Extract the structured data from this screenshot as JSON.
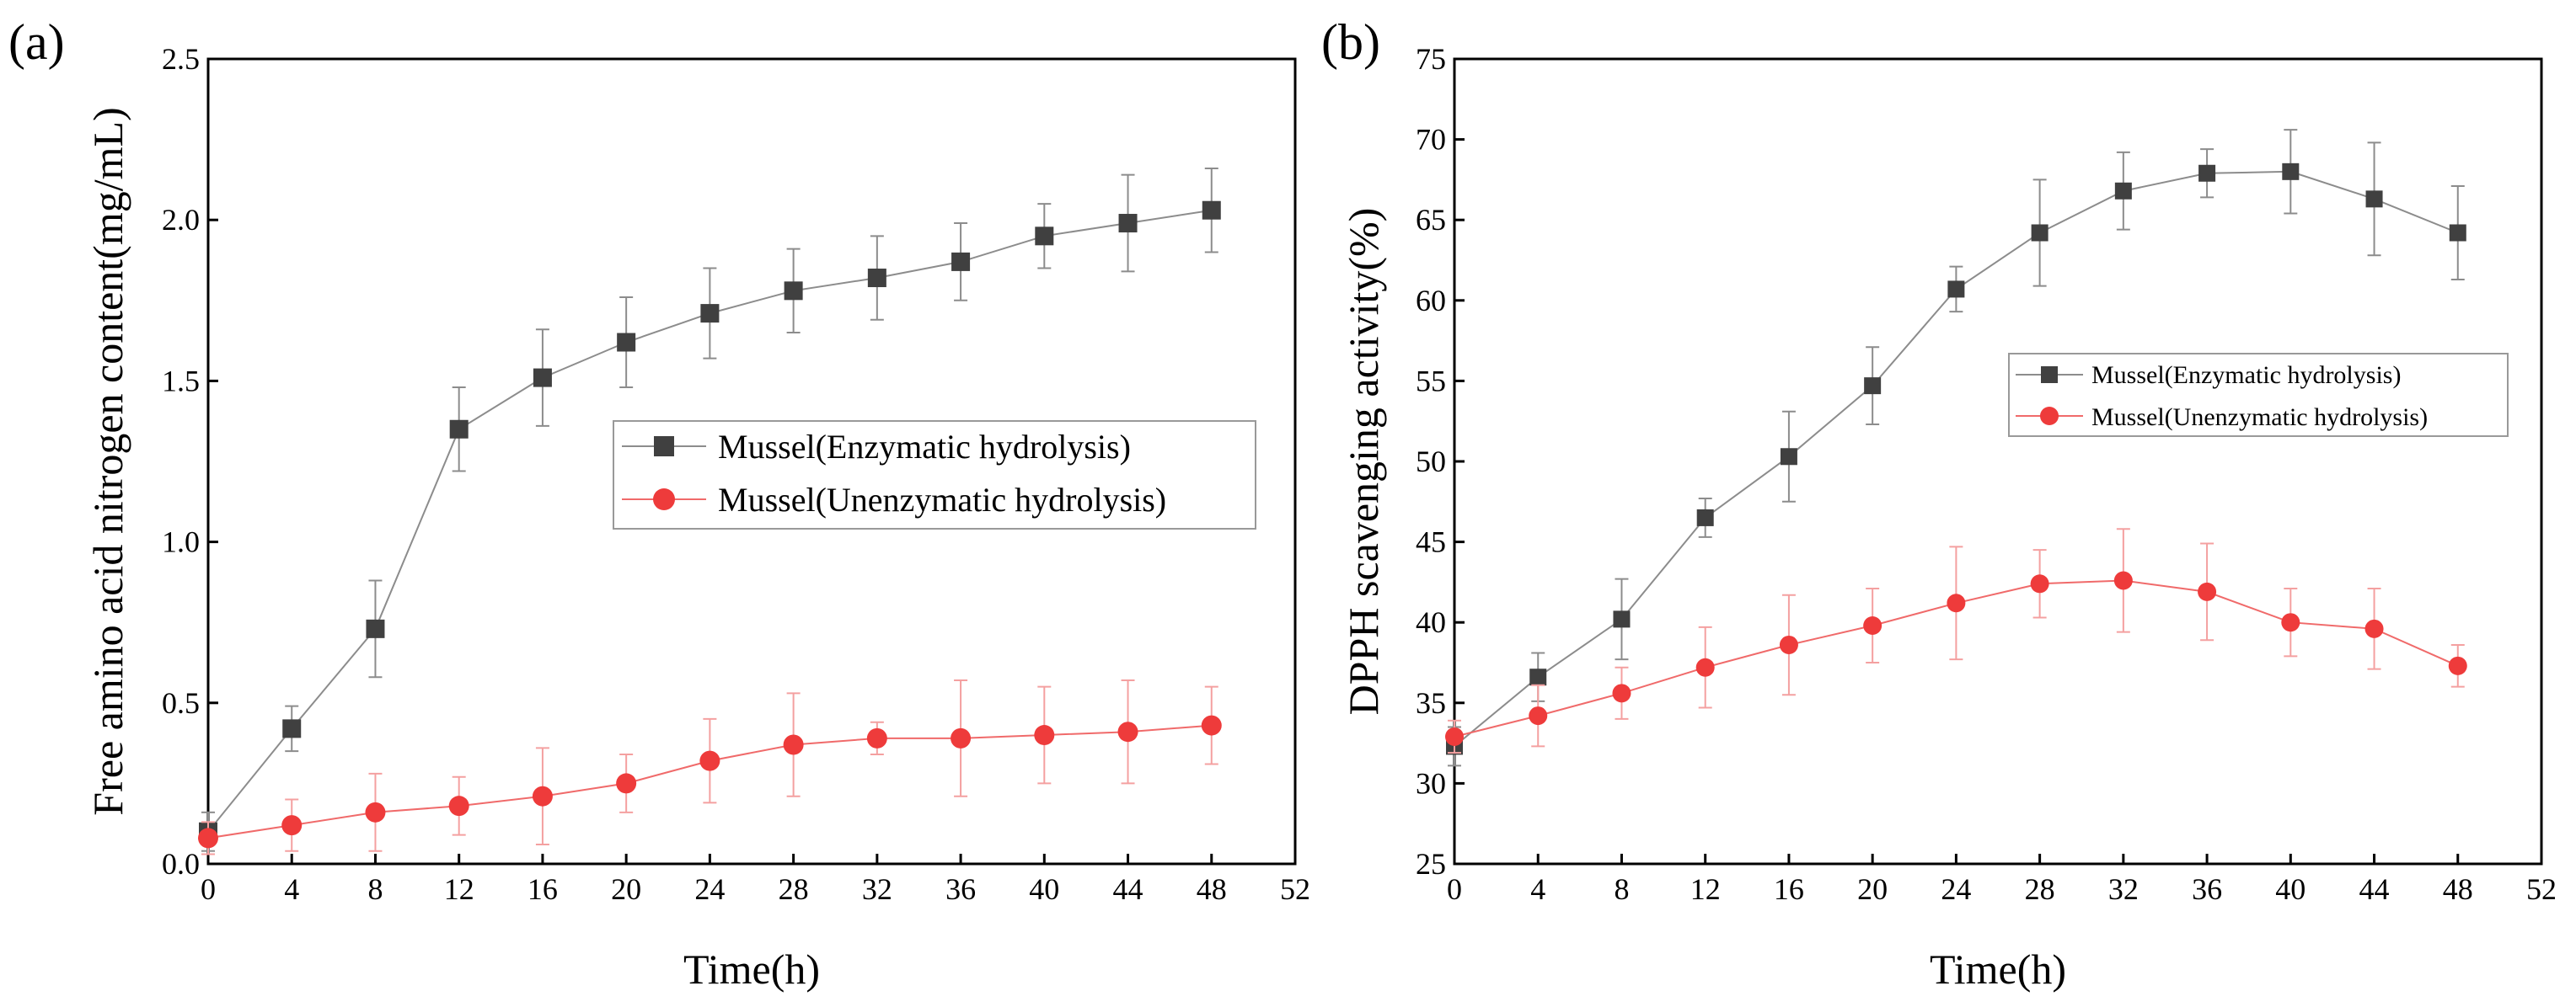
{
  "chart_data": [
    {
      "type": "line",
      "panel_label": "(a)",
      "title": "",
      "xlabel": "Time(h)",
      "ylabel": "Free amino acid nitrogen content(mg/mL)",
      "xlim": [
        0,
        52
      ],
      "ylim": [
        0,
        2.5
      ],
      "xticks": [
        0,
        4,
        8,
        12,
        16,
        20,
        24,
        28,
        32,
        36,
        40,
        44,
        48,
        52
      ],
      "yticks": [
        0.0,
        0.5,
        1.0,
        1.5,
        2.0,
        2.5
      ],
      "ytick_labels": [
        "0.0",
        "0.5",
        "1.0",
        "1.5",
        "2.0",
        "2.5"
      ],
      "grid": false,
      "legend_position": "center-right",
      "x": [
        0,
        4,
        8,
        12,
        16,
        20,
        24,
        28,
        32,
        36,
        40,
        44,
        48
      ],
      "series": [
        {
          "name": "Mussel(Enzymatic hydrolysis)",
          "marker": "square",
          "color": "#404040",
          "line_color": "#8c8c8c",
          "values": [
            0.1,
            0.42,
            0.73,
            1.35,
            1.51,
            1.62,
            1.71,
            1.78,
            1.82,
            1.87,
            1.95,
            1.99,
            2.03
          ],
          "errors": [
            0.06,
            0.07,
            0.15,
            0.13,
            0.15,
            0.14,
            0.14,
            0.13,
            0.13,
            0.12,
            0.1,
            0.15,
            0.13
          ]
        },
        {
          "name": "Mussel(Unenzymatic hydrolysis)",
          "marker": "circle",
          "color": "#ee3b3b",
          "line_color": "#f06a6a",
          "values": [
            0.08,
            0.12,
            0.16,
            0.18,
            0.21,
            0.25,
            0.32,
            0.37,
            0.39,
            0.39,
            0.4,
            0.41,
            0.43
          ],
          "errors": [
            0.05,
            0.08,
            0.12,
            0.09,
            0.15,
            0.09,
            0.13,
            0.16,
            0.05,
            0.18,
            0.15,
            0.16,
            0.12
          ]
        }
      ]
    },
    {
      "type": "line",
      "panel_label": "(b)",
      "title": "",
      "xlabel": "Time(h)",
      "ylabel": "DPPH scavenging activity(%)",
      "xlim": [
        0,
        52
      ],
      "ylim": [
        25,
        75
      ],
      "xticks": [
        0,
        4,
        8,
        12,
        16,
        20,
        24,
        28,
        32,
        36,
        40,
        44,
        48,
        52
      ],
      "yticks": [
        25,
        30,
        35,
        40,
        45,
        50,
        55,
        60,
        65,
        70,
        75
      ],
      "ytick_labels": [
        "25",
        "30",
        "35",
        "40",
        "45",
        "50",
        "55",
        "60",
        "65",
        "70",
        "75"
      ],
      "grid": false,
      "legend_position": "center-right",
      "x": [
        0,
        4,
        8,
        12,
        16,
        20,
        24,
        28,
        32,
        36,
        40,
        44,
        48
      ],
      "series": [
        {
          "name": "Mussel(Enzymatic hydrolysis)",
          "marker": "square",
          "color": "#404040",
          "line_color": "#8c8c8c",
          "values": [
            32.3,
            36.6,
            40.2,
            46.5,
            50.3,
            54.7,
            60.7,
            64.2,
            66.8,
            67.9,
            68.0,
            66.3,
            64.2
          ],
          "errors": [
            1.2,
            1.5,
            2.5,
            1.2,
            2.8,
            2.4,
            1.4,
            3.3,
            2.4,
            1.5,
            2.6,
            3.5,
            2.9
          ]
        },
        {
          "name": "Mussel(Unenzymatic hydrolysis)",
          "marker": "circle",
          "color": "#ee3b3b",
          "line_color": "#f06a6a",
          "values": [
            32.9,
            34.2,
            35.6,
            37.2,
            38.6,
            39.8,
            41.2,
            42.4,
            42.6,
            41.9,
            40.0,
            39.6,
            37.3
          ],
          "errors": [
            1.0,
            1.9,
            1.6,
            2.5,
            3.1,
            2.3,
            3.5,
            2.1,
            3.2,
            3.0,
            2.1,
            2.5,
            1.3
          ]
        }
      ]
    }
  ]
}
